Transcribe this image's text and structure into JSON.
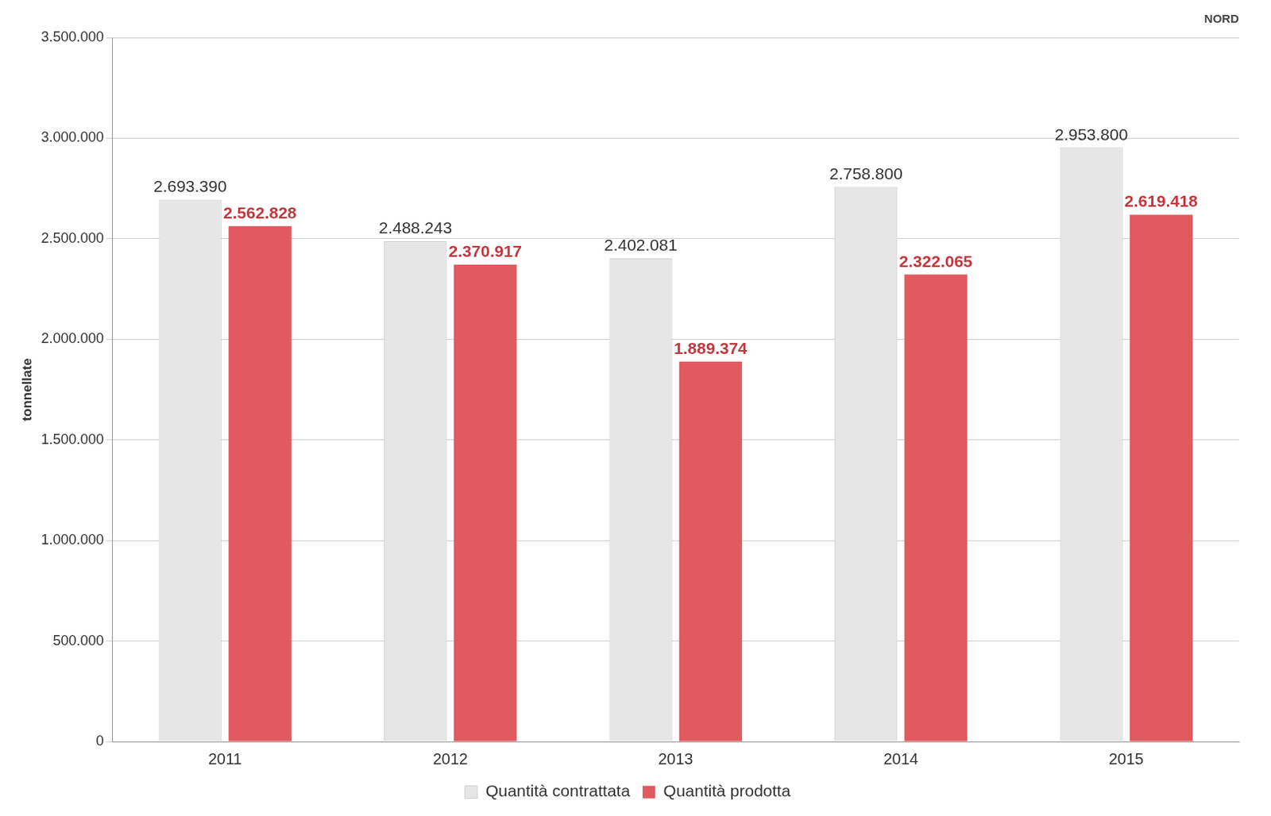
{
  "chart_data": {
    "type": "bar",
    "title": "NORD",
    "y_label": "tonnellate",
    "categories": [
      "2011",
      "2012",
      "2013",
      "2014",
      "2015"
    ],
    "series": [
      {
        "name": "Quantità contrattata",
        "color": "#e6e6e6",
        "values": [
          2693390,
          2488243,
          2402081,
          2758800,
          2953800
        ],
        "value_labels": [
          "2.693.390",
          "2.488.243",
          "2.402.081",
          "2.758.800",
          "2.953.800"
        ]
      },
      {
        "name": "Quantità prodotta",
        "color": "#e05a5f",
        "values": [
          2562828,
          2370917,
          1889374,
          2322065,
          2619418
        ],
        "value_labels": [
          "2.562.828",
          "2.370.917",
          "1.889.374",
          "2.322.065",
          "2.619.418"
        ]
      }
    ],
    "ylim": [
      0,
      3500000
    ],
    "yticks": [
      {
        "value": 0,
        "label": "0"
      },
      {
        "value": 500000,
        "label": "500.000"
      },
      {
        "value": 1000000,
        "label": "1.000.000"
      },
      {
        "value": 1500000,
        "label": "1.500.000"
      },
      {
        "value": 2000000,
        "label": "2.000.000"
      },
      {
        "value": 2500000,
        "label": "2.500.000"
      },
      {
        "value": 3000000,
        "label": "3.000.000"
      },
      {
        "value": 3500000,
        "label": "3.500.000"
      }
    ],
    "grid": true,
    "legend": "bottom",
    "data_labels": true
  }
}
